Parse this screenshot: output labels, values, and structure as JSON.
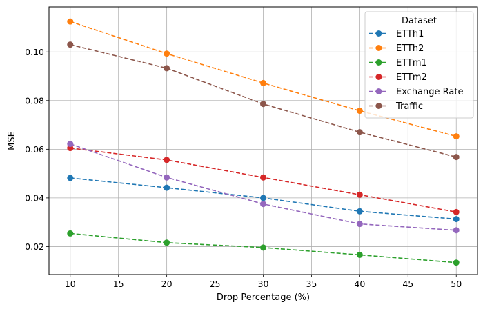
{
  "chart_data": {
    "type": "line",
    "xlabel": "Drop Percentage (%)",
    "ylabel": "MSE",
    "xlim": [
      7.8,
      52.2
    ],
    "ylim": [
      0.0085,
      0.1185
    ],
    "xticks": [
      10,
      15,
      20,
      25,
      30,
      35,
      40,
      45,
      50
    ],
    "yticks": [
      0.02,
      0.04,
      0.06,
      0.08,
      0.1
    ],
    "ytick_labels": [
      "0.02",
      "0.04",
      "0.06",
      "0.08",
      "0.10"
    ],
    "grid": true,
    "legend_title": "Dataset",
    "legend_position": "top-right",
    "x": [
      10,
      20,
      30,
      40,
      50
    ],
    "series": [
      {
        "name": "ETTh1",
        "color": "#1f77b4",
        "values": [
          0.0482,
          0.0442,
          0.04,
          0.0345,
          0.0313
        ]
      },
      {
        "name": "ETTh2",
        "color": "#ff7f0e",
        "values": [
          0.1125,
          0.0993,
          0.0872,
          0.0758,
          0.0653
        ]
      },
      {
        "name": "ETTm1",
        "color": "#2ca02c",
        "values": [
          0.0254,
          0.0216,
          0.0196,
          0.0166,
          0.0134
        ]
      },
      {
        "name": "ETTm2",
        "color": "#d62728",
        "values": [
          0.0605,
          0.0556,
          0.0484,
          0.0413,
          0.0342
        ]
      },
      {
        "name": "Exchange Rate",
        "color": "#9467bd",
        "values": [
          0.0622,
          0.0484,
          0.0375,
          0.0293,
          0.0267
        ]
      },
      {
        "name": "Traffic",
        "color": "#8c564b",
        "values": [
          0.103,
          0.0933,
          0.0786,
          0.067,
          0.0568
        ]
      }
    ]
  }
}
